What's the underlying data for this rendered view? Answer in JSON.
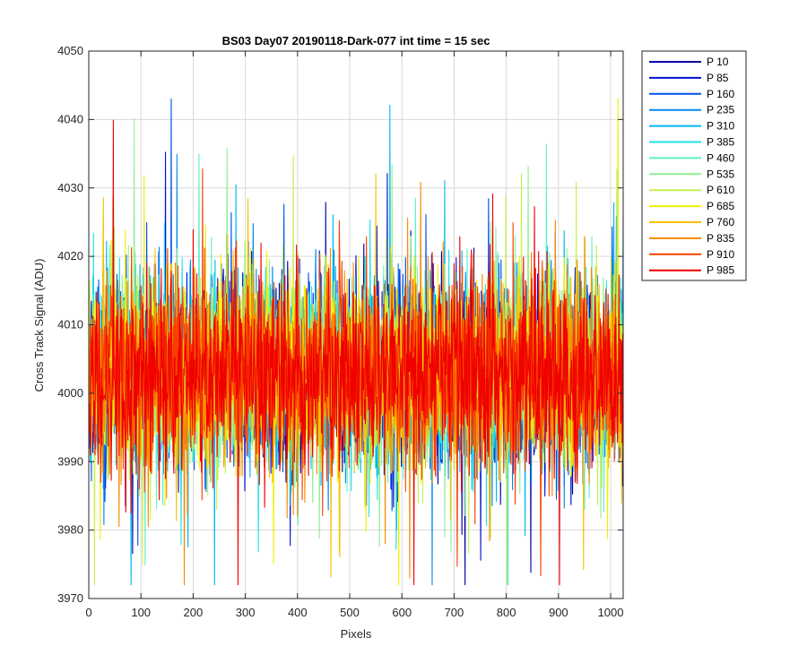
{
  "chart_data": {
    "type": "line",
    "title": "BS03 Day07 20190118-Dark-077 int time = 15 sec",
    "xlabel": "Pixels",
    "ylabel": "Cross Track Signal (ADU)",
    "xlim": [
      0,
      1024
    ],
    "ylim": [
      3970,
      4050
    ],
    "x_ticks": [
      0,
      100,
      200,
      300,
      400,
      500,
      600,
      700,
      800,
      900,
      1000
    ],
    "y_ticks": [
      3970,
      3980,
      3990,
      4000,
      4010,
      4020,
      4030,
      4040,
      4050
    ],
    "grid": true,
    "legend_position": "outside-top-right",
    "x_points": 1024,
    "series": [
      {
        "name": "P 10",
        "color": "#0000a8",
        "mean": 4003
      },
      {
        "name": "P 85",
        "color": "#0010d0",
        "mean": 4003
      },
      {
        "name": "P 160",
        "color": "#0050e8",
        "mean": 4003
      },
      {
        "name": "P 235",
        "color": "#0088f0",
        "mean": 4003
      },
      {
        "name": "P 310",
        "color": "#00b8f0",
        "mean": 4003
      },
      {
        "name": "P 385",
        "color": "#20e0e8",
        "mean": 4003
      },
      {
        "name": "P 460",
        "color": "#60f0c8",
        "mean": 4003
      },
      {
        "name": "P 535",
        "color": "#90f090",
        "mean": 4003
      },
      {
        "name": "P 610",
        "color": "#c8f050",
        "mean": 4003
      },
      {
        "name": "P 685",
        "color": "#f0f000",
        "mean": 4003
      },
      {
        "name": "P 760",
        "color": "#f8c000",
        "mean": 4003
      },
      {
        "name": "P 835",
        "color": "#f88800",
        "mean": 4003
      },
      {
        "name": "P 910",
        "color": "#f84000",
        "mean": 4003
      },
      {
        "name": "P 985",
        "color": "#f00000",
        "mean": 4003
      }
    ]
  }
}
